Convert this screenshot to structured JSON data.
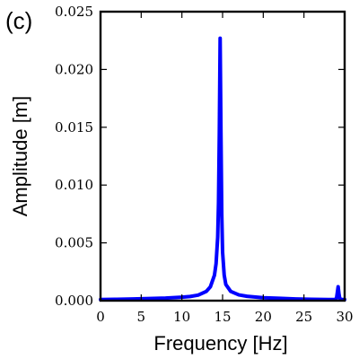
{
  "panel_label": "(c)",
  "chart_data": {
    "type": "line",
    "xlabel": "Frequency [Hz]",
    "ylabel": "Amplitude [m]",
    "xlim": [
      0,
      30
    ],
    "ylim": [
      0,
      0.025
    ],
    "x_ticks": [
      "0",
      "5",
      "10",
      "15",
      "20",
      "25",
      "30"
    ],
    "y_ticks": [
      "0.000",
      "0.005",
      "0.010",
      "0.015",
      "0.020",
      "0.025"
    ],
    "grid": false,
    "legend": "none",
    "series": [
      {
        "color": "#0000ff",
        "x": [
          0,
          2,
          4,
          6,
          8,
          10,
          11,
          12,
          13,
          13.5,
          14,
          14.2,
          14.4,
          14.5,
          14.6,
          14.7,
          14.8,
          14.9,
          15.0,
          15.2,
          15.4,
          16,
          17,
          18,
          20,
          22,
          24,
          26,
          28,
          28.8,
          29.0,
          29.1,
          29.2,
          29.3,
          29.4,
          29.6,
          30
        ],
        "y": [
          0.0001,
          0.00012,
          0.00015,
          0.00018,
          0.00022,
          0.0003,
          0.00036,
          0.00048,
          0.0008,
          0.0012,
          0.0022,
          0.0032,
          0.0055,
          0.0085,
          0.0145,
          0.0227,
          0.0145,
          0.0075,
          0.0042,
          0.0022,
          0.0014,
          0.0008,
          0.0005,
          0.00038,
          0.00025,
          0.0002,
          0.00015,
          0.00012,
          0.0001,
          0.0001,
          0.0002,
          0.0007,
          0.0012,
          0.0006,
          0.0002,
          0.0001,
          0.0001
        ]
      }
    ]
  }
}
